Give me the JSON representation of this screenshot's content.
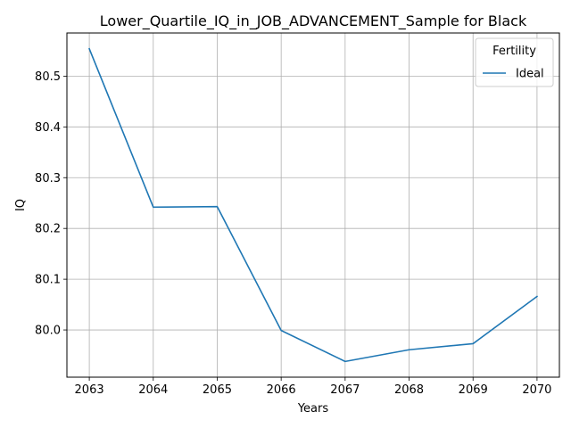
{
  "chart_data": {
    "type": "line",
    "title": "Lower_Quartile_IQ_in_JOB_ADVANCEMENT_Sample for Black",
    "xlabel": "Years",
    "ylabel": "IQ",
    "x": [
      2063,
      2064,
      2065,
      2066,
      2067,
      2068,
      2069,
      2070
    ],
    "series": [
      {
        "name": "Ideal",
        "color": "#1f77b4",
        "values": [
          80.554,
          80.242,
          80.243,
          79.999,
          79.938,
          79.961,
          79.973,
          80.066
        ]
      }
    ],
    "xlim": [
      2062.65,
      2070.35
    ],
    "ylim": [
      79.907,
      80.585
    ],
    "x_ticks": [
      2063,
      2064,
      2065,
      2066,
      2067,
      2068,
      2069,
      2070
    ],
    "y_ticks": [
      80.0,
      80.1,
      80.2,
      80.3,
      80.4,
      80.5
    ],
    "y_tick_labels": [
      "80.0",
      "80.1",
      "80.2",
      "80.3",
      "80.4",
      "80.5"
    ],
    "legend_title": "Fertility",
    "legend_position": "top-right",
    "grid": true
  }
}
